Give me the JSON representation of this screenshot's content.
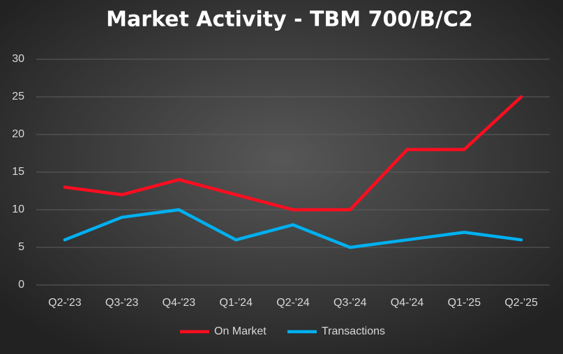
{
  "chart_data": {
    "type": "line",
    "title": "Market Activity - TBM 700/B/C2",
    "categories": [
      "Q2-'23",
      "Q3-'23",
      "Q4-'23",
      "Q1-'24",
      "Q2-'24",
      "Q3-'24",
      "Q4-'24",
      "Q1-'25",
      "Q2-'25"
    ],
    "series": [
      {
        "name": "On Market",
        "color": "#ff0d1f",
        "values": [
          13,
          12,
          14,
          12,
          10,
          10,
          18,
          18,
          25
        ]
      },
      {
        "name": "Transactions",
        "color": "#00b0f0",
        "values": [
          6,
          9,
          10,
          6,
          8,
          5,
          6,
          7,
          6
        ]
      }
    ],
    "ylim": [
      0,
      30
    ],
    "yticks": [
      0,
      5,
      10,
      15,
      20,
      25,
      30
    ],
    "grid": true,
    "legend": "bottom"
  }
}
